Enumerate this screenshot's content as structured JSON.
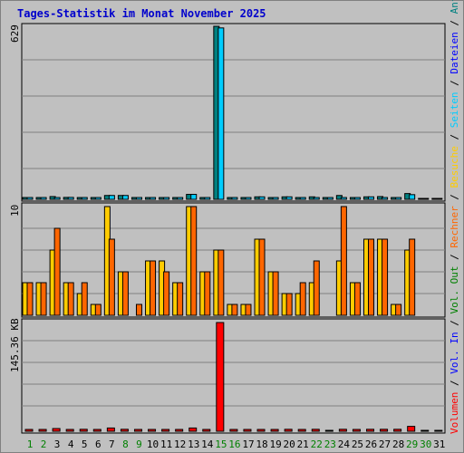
{
  "title": "Tages-Statistik im Monat November 2025",
  "legend": [
    {
      "text": "Volumen",
      "color": "#ff0000"
    },
    {
      "text": " / ",
      "color": "#000000"
    },
    {
      "text": "Vol. In",
      "color": "#0000ff"
    },
    {
      "text": " / ",
      "color": "#000000"
    },
    {
      "text": "Vol. Out",
      "color": "#008000"
    },
    {
      "text": " / ",
      "color": "#000000"
    },
    {
      "text": "Rechner",
      "color": "#ff6600"
    },
    {
      "text": " / ",
      "color": "#000000"
    },
    {
      "text": "Besuche",
      "color": "#ffcc00"
    },
    {
      "text": " / ",
      "color": "#000000"
    },
    {
      "text": "Seiten",
      "color": "#00ccff"
    },
    {
      "text": " / ",
      "color": "#000000"
    },
    {
      "text": "Dateien",
      "color": "#0000ff"
    },
    {
      "text": " / ",
      "color": "#000000"
    },
    {
      "text": "Anfragen",
      "color": "#008080"
    }
  ],
  "chart_data": [
    {
      "type": "bar",
      "panel": "top",
      "ylabel": "629",
      "ylim": [
        0,
        629
      ],
      "grid": true,
      "categories": [
        "1",
        "2",
        "3",
        "4",
        "5",
        "6",
        "7",
        "8",
        "9",
        "10",
        "11",
        "12",
        "13",
        "14",
        "15",
        "16",
        "17",
        "18",
        "19",
        "20",
        "21",
        "22",
        "23",
        "24",
        "25",
        "26",
        "27",
        "28",
        "29",
        "30",
        "31"
      ],
      "series": [
        {
          "name": "Anfragen",
          "color": "#008080",
          "values": [
            2,
            2,
            10,
            7,
            6,
            4,
            14,
            14,
            4,
            6,
            6,
            2,
            18,
            6,
            629,
            2,
            2,
            9,
            6,
            9,
            4,
            9,
            2,
            14,
            4,
            9,
            10,
            2,
            21,
            0,
            0
          ]
        },
        {
          "name": "Seiten",
          "color": "#00ccff",
          "values": [
            2,
            2,
            6,
            7,
            6,
            4,
            14,
            14,
            4,
            6,
            6,
            2,
            18,
            6,
            623,
            2,
            2,
            9,
            6,
            9,
            2,
            6,
            2,
            6,
            2,
            9,
            6,
            2,
            17,
            0,
            0
          ]
        }
      ]
    },
    {
      "type": "bar",
      "panel": "middle",
      "ylabel": "10",
      "ylim": [
        0,
        10
      ],
      "grid": true,
      "categories": [
        "1",
        "2",
        "3",
        "4",
        "5",
        "6",
        "7",
        "8",
        "9",
        "10",
        "11",
        "12",
        "13",
        "14",
        "15",
        "16",
        "17",
        "18",
        "19",
        "20",
        "21",
        "22",
        "23",
        "24",
        "25",
        "26",
        "27",
        "28",
        "29",
        "30",
        "31"
      ],
      "series": [
        {
          "name": "Besuche",
          "color": "#ffcc00",
          "values": [
            3,
            3,
            6,
            3,
            2,
            1,
            10,
            4,
            0,
            5,
            5,
            3,
            10,
            4,
            6,
            1,
            1,
            7,
            4,
            2,
            2,
            3,
            0,
            5,
            3,
            7,
            7,
            1,
            6,
            0,
            0
          ]
        },
        {
          "name": "Rechner",
          "color": "#ff6600",
          "values": [
            3,
            3,
            8,
            3,
            3,
            1,
            7,
            4,
            1,
            5,
            4,
            3,
            10,
            4,
            6,
            1,
            1,
            7,
            4,
            2,
            3,
            5,
            0,
            10,
            3,
            7,
            7,
            1,
            7,
            0,
            0
          ]
        }
      ]
    },
    {
      "type": "bar",
      "panel": "bottom",
      "ylabel": "145.36 KB",
      "grid": true,
      "categories": [
        "1",
        "2",
        "3",
        "4",
        "5",
        "6",
        "7",
        "8",
        "9",
        "10",
        "11",
        "12",
        "13",
        "14",
        "15",
        "16",
        "17",
        "18",
        "19",
        "20",
        "21",
        "22",
        "23",
        "24",
        "25",
        "26",
        "27",
        "28",
        "29",
        "30",
        "31"
      ],
      "series": [
        {
          "name": "Volumen",
          "color": "#ff0000",
          "values": [
            0.1,
            0.1,
            0.25,
            0.1,
            0.18,
            0.08,
            0.3,
            0.18,
            0.1,
            0.1,
            0.1,
            0.08,
            0.3,
            0.1,
            10.0,
            0.08,
            0.08,
            0.1,
            0.1,
            0.18,
            0.1,
            0.18,
            0.0,
            0.18,
            0.1,
            0.18,
            0.18,
            0.18,
            0.45,
            0.0,
            0.0
          ]
        }
      ]
    }
  ],
  "x_label_colors": [
    "#008000",
    "#008000",
    "#000000",
    "#000000",
    "#000000",
    "#000000",
    "#000000",
    "#008000",
    "#008000",
    "#000000",
    "#000000",
    "#000000",
    "#000000",
    "#000000",
    "#008000",
    "#008000",
    "#000000",
    "#000000",
    "#000000",
    "#000000",
    "#000000",
    "#008000",
    "#008000",
    "#000000",
    "#000000",
    "#000000",
    "#000000",
    "#000000",
    "#008000",
    "#008000",
    "#000000"
  ]
}
